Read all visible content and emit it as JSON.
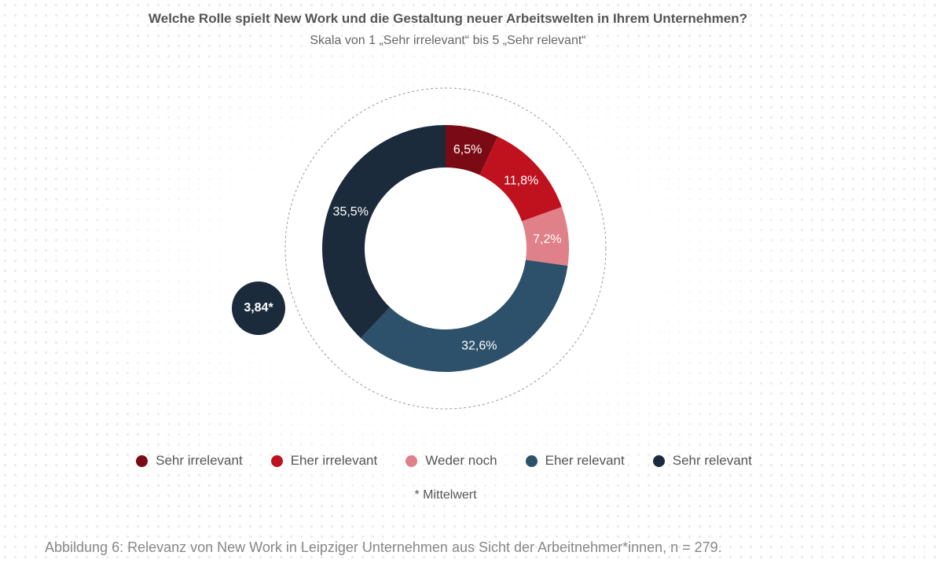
{
  "title": "Welche Rolle spielt New Work und die Gestaltung neuer Arbeitswelten in Ihrem Unternehmen?",
  "subtitle": "Skala von 1 „Sehr irrelevant“ bis 5 „Sehr relevant“",
  "mean_badge": "3,84*",
  "footnote": "* Mittelwert",
  "caption": "Abbildung 6: Relevanz von New Work in Leipziger Unternehmen aus Sicht der Arbeitnehmer*innen, n = 279.",
  "legend": [
    {
      "label": "Sehr irrelevant",
      "color": "#7a0b14"
    },
    {
      "label": "Eher irrelevant",
      "color": "#c0111f"
    },
    {
      "label": "Weder noch",
      "color": "#e08088"
    },
    {
      "label": "Eher relevant",
      "color": "#2e516b"
    },
    {
      "label": "Sehr relevant",
      "color": "#1b2b3b"
    }
  ],
  "chart_data": {
    "type": "pie",
    "style": "donut",
    "categories": [
      "Sehr irrelevant",
      "Eher irrelevant",
      "Weder noch",
      "Eher relevant",
      "Sehr relevant"
    ],
    "values": [
      6.5,
      11.8,
      7.2,
      32.6,
      35.5
    ],
    "labels": [
      "6,5%",
      "11,8%",
      "7,2%",
      "32,6%",
      "35,5%"
    ],
    "colors": [
      "#7a0b14",
      "#c0111f",
      "#e08088",
      "#2e516b",
      "#1b2b3b"
    ],
    "start": "top, clockwise",
    "legend_position": "bottom"
  }
}
